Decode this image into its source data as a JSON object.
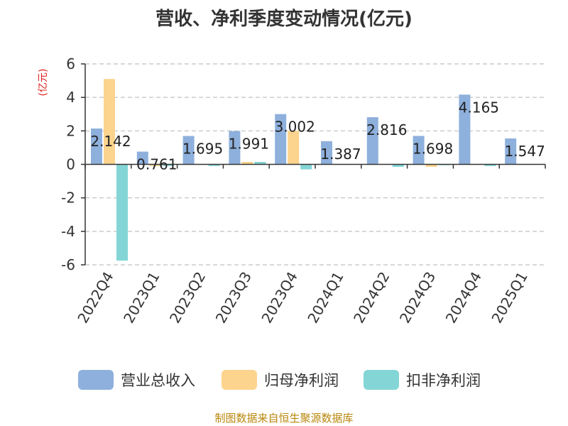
{
  "chart_data": {
    "type": "bar",
    "title": "营收、净利季度变动情况(亿元)",
    "ylabel": "(亿元)",
    "xlabel": "",
    "ylim": [
      -6,
      6
    ],
    "yticks": [
      6,
      4,
      2,
      0,
      -2,
      -4,
      -6
    ],
    "grid": true,
    "legend_position": "bottom",
    "categories": [
      "2022Q4",
      "2023Q1",
      "2023Q2",
      "2023Q3",
      "2023Q4",
      "2024Q1",
      "2024Q2",
      "2024Q3",
      "2024Q4",
      "2025Q1"
    ],
    "series": [
      {
        "name": "营业总收入",
        "color": "#8eb0dc",
        "values": [
          2.142,
          0.761,
          1.695,
          1.991,
          3.002,
          1.387,
          2.816,
          1.698,
          4.165,
          1.547
        ]
      },
      {
        "name": "归母净利润",
        "color": "#fdd48d",
        "values": [
          5.1,
          -0.1,
          0.0,
          0.15,
          2.0,
          0.0,
          0.0,
          -0.15,
          0.0,
          0.0
        ]
      },
      {
        "name": "扣非净利润",
        "color": "#84d6d6",
        "values": [
          -5.75,
          -0.1,
          -0.1,
          0.15,
          -0.3,
          0.0,
          -0.15,
          -0.05,
          -0.1,
          0.0
        ]
      }
    ],
    "data_labels": [
      "2.142",
      "0.761",
      "1.695",
      "1.991",
      "3.002",
      "1.387",
      "2.816",
      "1.698",
      "4.165",
      "1.547"
    ]
  },
  "source_note": "制图数据来自恒生聚源数据库"
}
